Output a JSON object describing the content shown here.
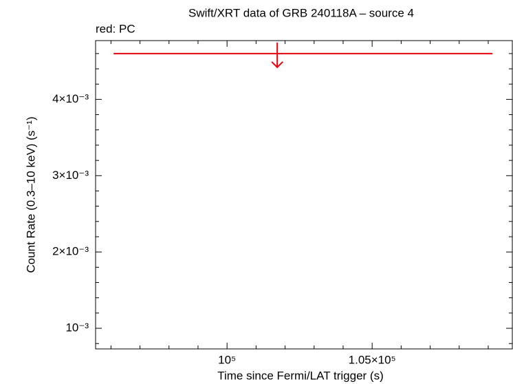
{
  "chart_data": {
    "type": "scatter",
    "title": "Swift/XRT data of GRB 240118A – source 4",
    "legend_text": "red: PC",
    "x_label": "Time since Fermi/LAT trigger (s)",
    "y_label": "Count Rate (0.3–10 keV) (s⁻¹)",
    "xlim": [
      95470,
      109830
    ],
    "ylim": [
      0.00073,
      0.00477
    ],
    "xticks": [
      {
        "value": 100000,
        "label": "10⁵"
      },
      {
        "value": 105000,
        "label": "1.05×10⁵"
      }
    ],
    "xminorticks": [
      96000,
      97000,
      98000,
      99000,
      101000,
      102000,
      103000,
      104000,
      106000,
      107000,
      108000,
      109000
    ],
    "yticks": [
      {
        "value": 0.001,
        "label": "10⁻³"
      },
      {
        "value": 0.002,
        "label": "2×10⁻³"
      },
      {
        "value": 0.003,
        "label": "3×10⁻³"
      },
      {
        "value": 0.004,
        "label": "4×10⁻³"
      }
    ],
    "yminorticks": [
      0.0008,
      0.0012,
      0.0014,
      0.0016,
      0.0018,
      0.0022,
      0.0024,
      0.0026,
      0.0028,
      0.0032,
      0.0034,
      0.0036,
      0.0038,
      0.0042,
      0.0044,
      0.0046
    ],
    "series": [
      {
        "color": "#e8000b",
        "x": [
          101730
        ],
        "x_low": [
          96090
        ],
        "x_high": [
          109147
        ],
        "values": [
          0.0046
        ],
        "upper_limit": true
      }
    ]
  }
}
